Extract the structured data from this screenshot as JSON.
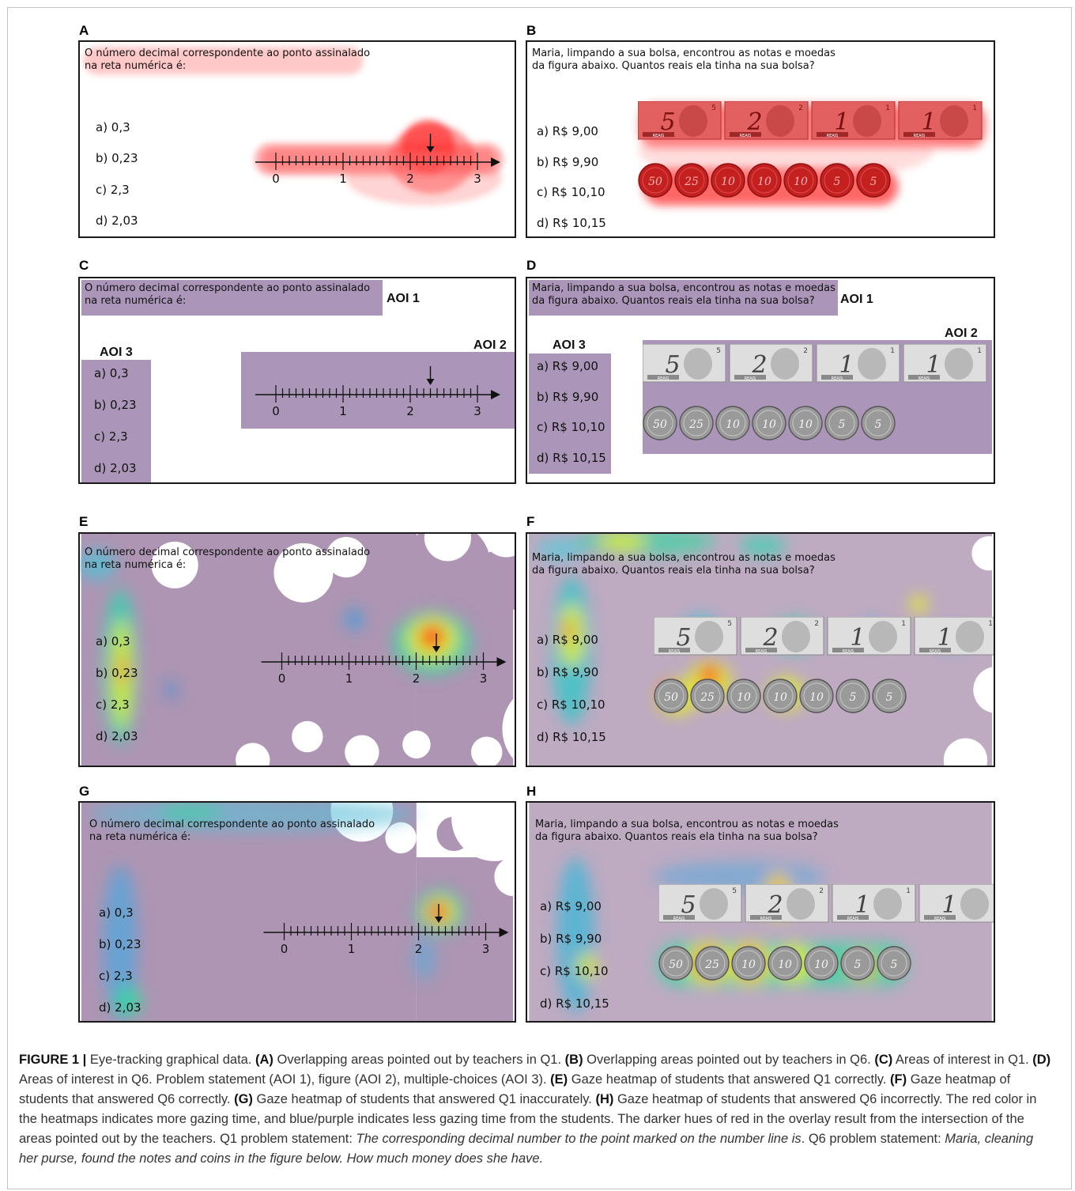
{
  "panels": {
    "A": {
      "label": "A"
    },
    "B": {
      "label": "B"
    },
    "C": {
      "label": "C"
    },
    "D": {
      "label": "D"
    },
    "E": {
      "label": "E"
    },
    "F": {
      "label": "F"
    },
    "G": {
      "label": "G"
    },
    "H": {
      "label": "H"
    }
  },
  "q1": {
    "statement": "O número decimal correspondente ao ponto assinalado\nna reta numérica é:",
    "options": [
      "a)  0,3",
      "b)  0,23",
      "c)  2,3",
      "d)  2,03"
    ],
    "ticks": [
      "0",
      "1",
      "2",
      "3"
    ]
  },
  "q6": {
    "statement": "Maria, limpando a sua bolsa, encontrou as notas e moedas\nda figura abaixo. Quantos reais ela tinha na sua bolsa?",
    "options": [
      "a)  R$ 9,00",
      "b)  R$ 9,90",
      "c)  R$ 10,10",
      "d)  R$ 10,15"
    ],
    "notes": [
      "5",
      "2",
      "1",
      "1"
    ],
    "note_corner": [
      "5",
      "2",
      "1",
      "1"
    ],
    "note_word": "REAIS",
    "coins": [
      "50",
      "25",
      "10",
      "10",
      "10",
      "5",
      "5"
    ]
  },
  "aoi": {
    "aoi1": "AOI 1",
    "aoi2": "AOI 2",
    "aoi3": "AOI 3"
  },
  "caption": {
    "fig": "FIGURE 1 |",
    "intro": "Eye-tracking graphical data.",
    "A_tag": "(A)",
    "A_text": "Overlapping areas pointed out by teachers in Q1.",
    "B_tag": "(B)",
    "B_text": "Overlapping areas pointed out by teachers in Q6.",
    "C_tag": "(C)",
    "C_text": "Areas of interest in Q1.",
    "D_tag": "(D)",
    "D_text": "Areas of interest in Q6. Problem statement (AOI 1), figure (AOI 2), multiple-choices (AOI 3).",
    "E_tag": "(E)",
    "E_text": "Gaze heatmap of students that answered Q1 correctly.",
    "F_tag": "(F)",
    "F_text": "Gaze heatmap of students that answered Q6 correctly.",
    "G_tag": "(G)",
    "G_text": "Gaze heatmap of students that answered Q1 inaccurately.",
    "H_tag": "(H)",
    "H_text": "Gaze heatmap of students that answered Q6 incorrectly. The red color in the heatmaps indicates more gazing time, and blue/purple indicates less gazing time from the students. The darker hues of red in the overlay result from the intersection of the areas pointed out by the teachers. Q1 problem statement:",
    "q1_en": "The corresponding decimal number to the point marked on the number line is",
    "mid": ". Q6 problem statement:",
    "q6_en": "Maria, cleaning her purse, found the notes and coins in the figure below. How much money does she have."
  }
}
